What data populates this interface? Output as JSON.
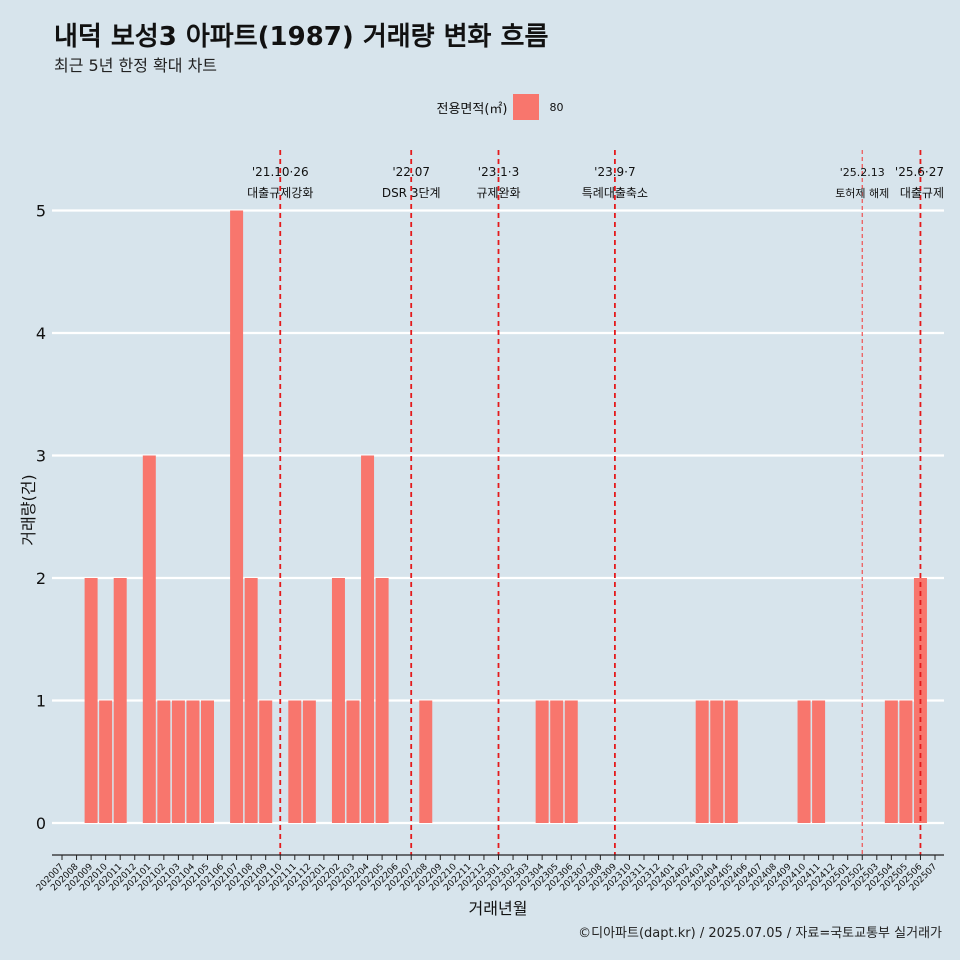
{
  "header": {
    "title": "내덕 보성3 아파트(1987) 거래량 변화 흐름",
    "subtitle": "최근 5년 한정 확대 차트"
  },
  "legend": {
    "title": "전용면적(㎡)",
    "items": [
      {
        "label": "80",
        "color": "#f8766d"
      }
    ]
  },
  "caption": "©디아파트(dapt.kr) / 2025.07.05 / 자료=국토교통부 실거래가",
  "chart_data": {
    "type": "bar",
    "xlabel": "거래년월",
    "ylabel": "거래량(건)",
    "ylim": [
      0,
      5
    ],
    "yticks": [
      0,
      1,
      2,
      3,
      4,
      5
    ],
    "grid": true,
    "legend_position": "top",
    "bar_color": "#f8766d",
    "categories": [
      "202007",
      "202008",
      "202009",
      "202010",
      "202011",
      "202012",
      "202101",
      "202102",
      "202103",
      "202104",
      "202105",
      "202106",
      "202107",
      "202108",
      "202109",
      "202110",
      "202111",
      "202112",
      "202201",
      "202202",
      "202203",
      "202204",
      "202205",
      "202206",
      "202207",
      "202208",
      "202209",
      "202210",
      "202211",
      "202212",
      "202301",
      "202302",
      "202303",
      "202304",
      "202305",
      "202306",
      "202307",
      "202308",
      "202309",
      "202310",
      "202311",
      "202312",
      "202401",
      "202402",
      "202403",
      "202404",
      "202405",
      "202406",
      "202407",
      "202408",
      "202409",
      "202410",
      "202411",
      "202412",
      "202501",
      "202502",
      "202503",
      "202504",
      "202505",
      "202506",
      "202507"
    ],
    "series": [
      {
        "name": "80",
        "values": [
          0,
          0,
          2,
          1,
          2,
          0,
          3,
          1,
          1,
          1,
          1,
          0,
          5,
          2,
          1,
          0,
          1,
          1,
          0,
          2,
          1,
          3,
          2,
          0,
          0,
          1,
          0,
          0,
          0,
          0,
          0,
          0,
          0,
          1,
          1,
          1,
          0,
          0,
          0,
          0,
          0,
          0,
          0,
          0,
          1,
          1,
          1,
          0,
          0,
          0,
          0,
          1,
          1,
          0,
          0,
          0,
          0,
          1,
          1,
          2,
          0
        ]
      }
    ],
    "annotations": [
      {
        "date_label": "'21.10·26",
        "text": "대출규제강화",
        "position": 15.0,
        "style": "dashed"
      },
      {
        "date_label": "'22.07",
        "text": "DSR 3단계",
        "position": 24.0,
        "style": "dashed"
      },
      {
        "date_label": "'23.1·3",
        "text": "규제완화",
        "position": 30.0,
        "style": "dashed"
      },
      {
        "date_label": "'23.9·7",
        "text": "특례대출축소",
        "position": 38.0,
        "style": "dashed"
      },
      {
        "date_label": "'25.2.13",
        "text": "토허제 해제",
        "position": 55.0,
        "style": "thin-dashed"
      },
      {
        "date_label": "'25.6·27",
        "text": "대출규제",
        "position": 59.0,
        "style": "dashed"
      }
    ]
  }
}
